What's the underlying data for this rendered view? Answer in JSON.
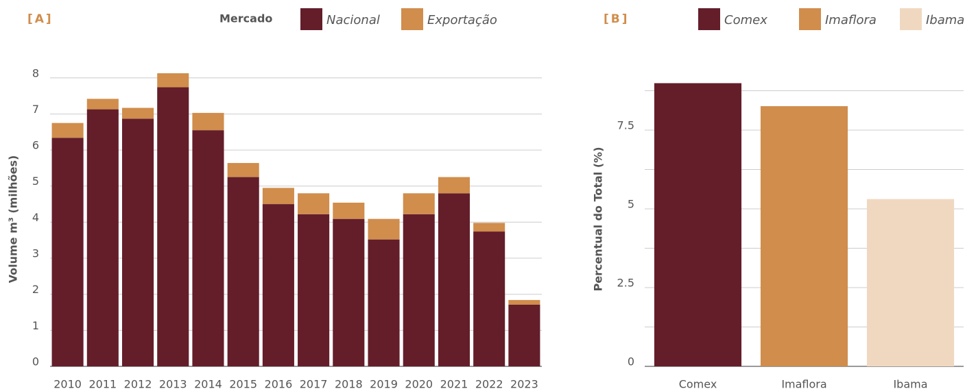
{
  "chart_data": [
    {
      "type": "stacked_bar",
      "title": "[A]",
      "legend_title": "Mercado",
      "y_label": "Volume m³ (milhões)",
      "categories": [
        "2010",
        "2011",
        "2012",
        "2013",
        "2014",
        "2015",
        "2016",
        "2017",
        "2018",
        "2019",
        "2020",
        "2021",
        "2022",
        "2023"
      ],
      "series": [
        {
          "name": "Nacional",
          "color": "#631e2a",
          "values": [
            6.34,
            7.13,
            6.87,
            7.74,
            6.55,
            5.25,
            4.5,
            4.22,
            4.09,
            3.52,
            4.22,
            4.8,
            3.74,
            1.71
          ]
        },
        {
          "name": "Exportação",
          "color": "#d08d4c",
          "values": [
            0.41,
            0.29,
            0.3,
            0.39,
            0.48,
            0.39,
            0.45,
            0.58,
            0.45,
            0.57,
            0.58,
            0.45,
            0.24,
            0.13
          ]
        }
      ],
      "ylim": [
        0,
        8.3
      ],
      "yticks": [
        0,
        1,
        2,
        3,
        4,
        5,
        6,
        7,
        8
      ],
      "grid": true
    },
    {
      "type": "bar",
      "title": "[B]",
      "y_label": "Percentual do Total (%)",
      "categories": [
        "Comex",
        "Imaflora",
        "Ibama"
      ],
      "values": [
        8.99,
        8.26,
        5.31
      ],
      "colors": [
        "#631e2a",
        "#d08d4c",
        "#f0d8c0"
      ],
      "ylim": [
        0,
        9.5
      ],
      "yticks": [
        0,
        2.5,
        5,
        7.5
      ],
      "minor_yticks": [
        1.25,
        3.75,
        6.25,
        8.75
      ],
      "grid": true
    }
  ]
}
